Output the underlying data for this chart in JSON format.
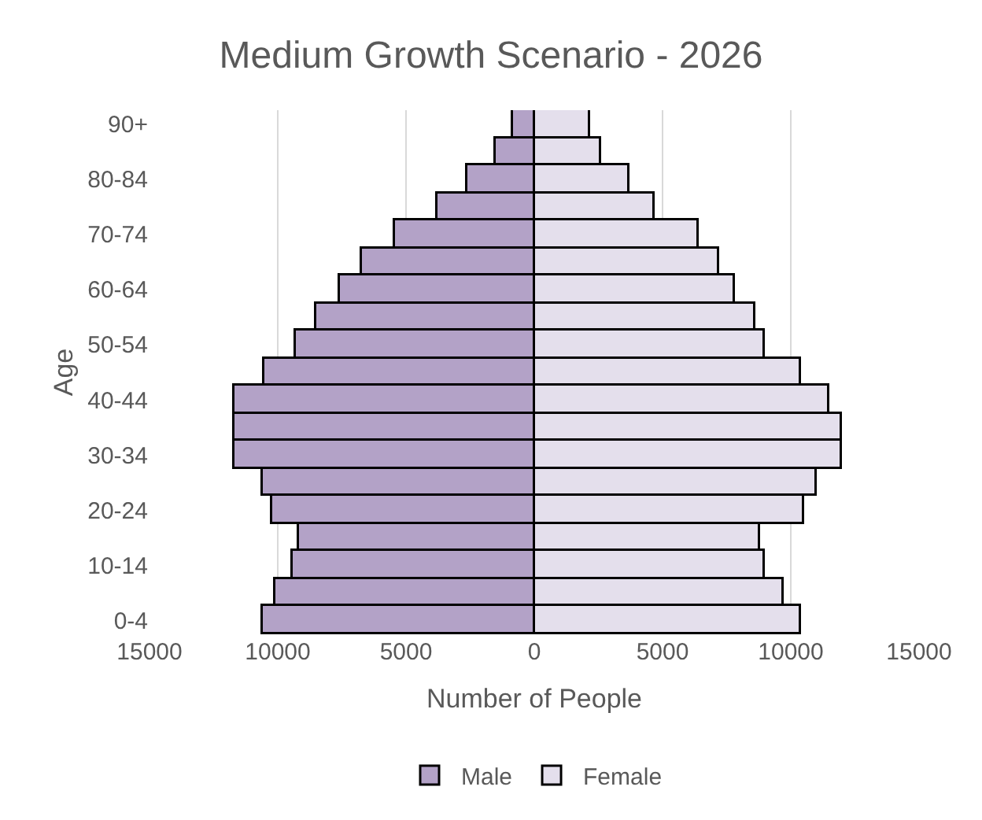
{
  "chart_data": {
    "type": "bar",
    "orientation": "horizontal",
    "title": "Medium Growth Scenario - 2026",
    "xlabel": "Number of People",
    "ylabel": "Age",
    "categories": [
      "90+",
      null,
      "80-84",
      null,
      "70-74",
      null,
      "60-64",
      null,
      "50-54",
      null,
      "40-44",
      null,
      "30-34",
      null,
      "20-24",
      null,
      "10-14",
      null,
      "0-4"
    ],
    "series": [
      {
        "name": "Male",
        "color": "#b3a2c7",
        "values": [
          -850,
          -1500,
          -2600,
          -3800,
          -5400,
          -6700,
          -7600,
          -8500,
          -9300,
          -10500,
          -11700,
          -11700,
          -11700,
          -10600,
          -10200,
          -9200,
          -9400,
          -10100,
          -10600
        ]
      },
      {
        "name": "Female",
        "color": "#e4dfec",
        "values": [
          2200,
          2600,
          3700,
          4700,
          6400,
          7200,
          7800,
          8600,
          9000,
          10400,
          11500,
          12000,
          12000,
          11000,
          10500,
          8800,
          9000,
          9700,
          10400
        ]
      }
    ],
    "xlim": [
      -15000,
      15000
    ],
    "xticks": [
      {
        "value": -15000,
        "label": "15000"
      },
      {
        "value": -10000,
        "label": "10000"
      },
      {
        "value": -5000,
        "label": "5000"
      },
      0,
      5000,
      10000,
      15000
    ],
    "grid": "x",
    "legend": "bottom",
    "stacked": true
  }
}
